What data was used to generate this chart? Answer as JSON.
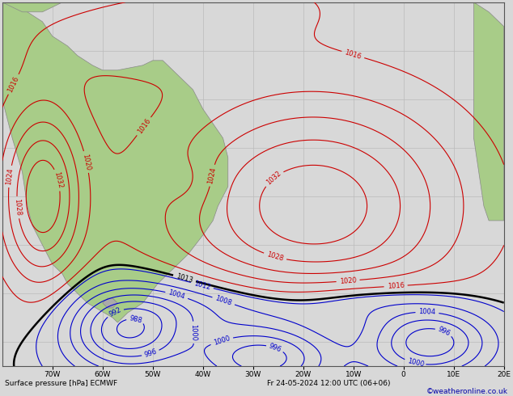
{
  "title_bottom": "Surface pressure [hPa] ECMWF",
  "date_label": "Fr 24-05-2024 12:00 UTC (06+06)",
  "credit": "©weatheronline.co.uk",
  "background_color": "#d8d8d8",
  "land_color": "#a8cc88",
  "border_color": "#888888",
  "grid_color": "#bbbbbb",
  "isobar_color_high": "#cc0000",
  "isobar_color_low": "#0000cc",
  "isobar_color_1013": "#000000",
  "bottom_text_color": "#000000",
  "credit_color": "#0000aa",
  "figsize": [
    6.34,
    4.9
  ],
  "dpi": 100,
  "lon_min": -80,
  "lon_max": 20,
  "lat_min": -65,
  "lat_max": 10,
  "xticks": [
    -70,
    -60,
    -50,
    -40,
    -30,
    -20,
    -10,
    0,
    10,
    20
  ],
  "yticks": []
}
